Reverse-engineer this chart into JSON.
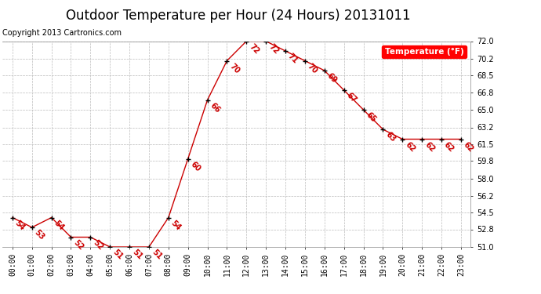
{
  "title": "Outdoor Temperature per Hour (24 Hours) 20131011",
  "copyright": "Copyright 2013 Cartronics.com",
  "legend_label": "Temperature (°F)",
  "hours": [
    "00:00",
    "01:00",
    "02:00",
    "03:00",
    "04:00",
    "05:00",
    "06:00",
    "07:00",
    "08:00",
    "09:00",
    "10:00",
    "11:00",
    "12:00",
    "13:00",
    "14:00",
    "15:00",
    "16:00",
    "17:00",
    "18:00",
    "19:00",
    "20:00",
    "21:00",
    "22:00",
    "23:00"
  ],
  "temps": [
    54,
    53,
    54,
    52,
    52,
    51,
    51,
    51,
    54,
    60,
    66,
    70,
    72,
    72,
    71,
    70,
    69,
    67,
    65,
    63,
    62,
    62,
    62,
    62
  ],
  "ylim_min": 51.0,
  "ylim_max": 72.0,
  "yticks": [
    51.0,
    52.8,
    54.5,
    56.2,
    58.0,
    59.8,
    61.5,
    63.2,
    65.0,
    66.8,
    68.5,
    70.2,
    72.0
  ],
  "line_color": "#cc0000",
  "marker_color": "#000000",
  "label_color": "#cc0000",
  "bg_color": "#ffffff",
  "grid_color": "#bbbbbb",
  "title_fontsize": 12,
  "tick_fontsize": 7,
  "copyright_fontsize": 7,
  "annot_fontsize": 7
}
